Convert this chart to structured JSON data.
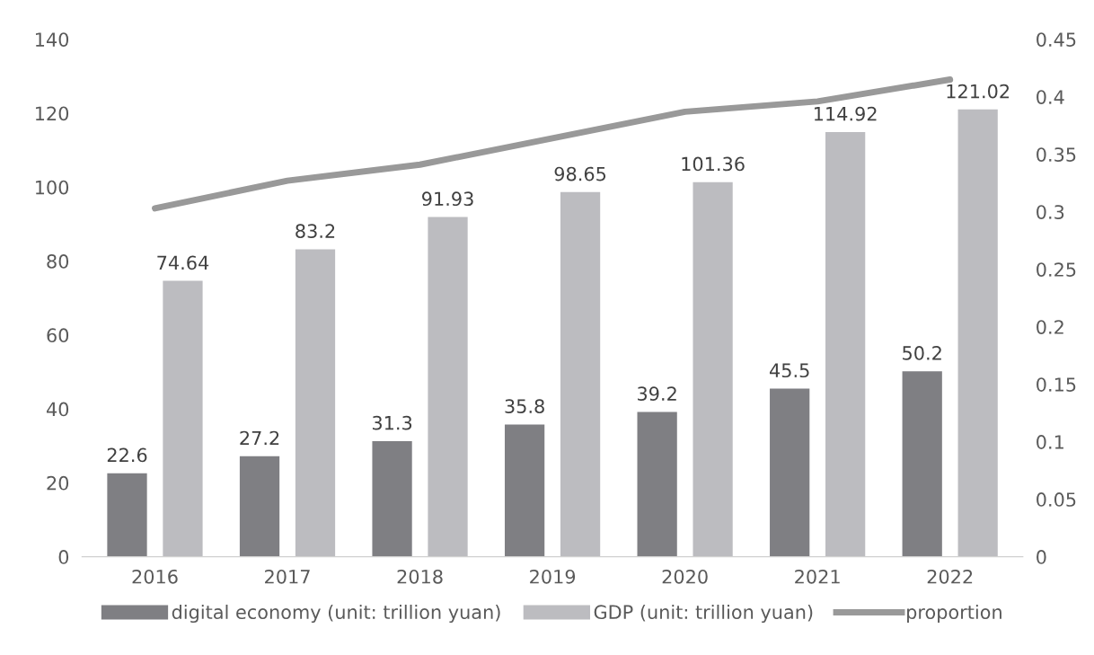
{
  "chart_data": {
    "type": "bar",
    "categories": [
      "2016",
      "2017",
      "2018",
      "2019",
      "2020",
      "2021",
      "2022"
    ],
    "series": [
      {
        "name": "digital economy (unit: trillion yuan)",
        "color": "#7f7f83",
        "values": [
          22.6,
          27.2,
          31.3,
          35.8,
          39.2,
          45.5,
          50.2
        ],
        "value_labels": [
          "22.6",
          "27.2",
          "31.3",
          "35.8",
          "39.2",
          "45.5",
          "50.2"
        ]
      },
      {
        "name": "GDP (unit: trillion yuan)",
        "color": "#bcbcc0",
        "values": [
          74.64,
          83.2,
          91.93,
          98.65,
          101.36,
          114.92,
          121.02
        ],
        "value_labels": [
          "74.64",
          "83.2",
          "91.93",
          "98.65",
          "101.36",
          "114.92",
          "121.02"
        ]
      },
      {
        "name": "proportion",
        "type": "line",
        "axis": "y2",
        "color": "#999999",
        "values": [
          0.303,
          0.327,
          0.341,
          0.364,
          0.387,
          0.396,
          0.415
        ]
      }
    ],
    "ylim": [
      0,
      140
    ],
    "yticks": [
      0,
      20,
      40,
      60,
      80,
      100,
      120,
      140
    ],
    "y2lim": [
      0,
      0.45
    ],
    "y2ticks": [
      0,
      0.05,
      0.1,
      0.15,
      0.2,
      0.25,
      0.3,
      0.35,
      0.4,
      0.45
    ],
    "grid": false,
    "legend": "bottom",
    "marker": "none",
    "line_style": "solid"
  }
}
